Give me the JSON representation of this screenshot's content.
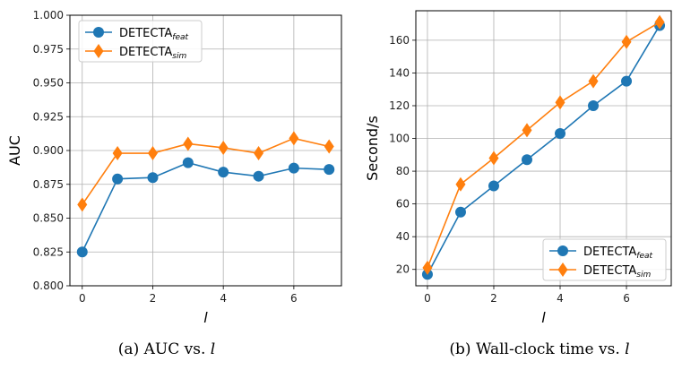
{
  "colors": {
    "feat": "#1f77b4",
    "sim": "#ff7f0e",
    "grid": "#b0b0b0"
  },
  "chart_data": [
    {
      "type": "line",
      "xlabel": "l",
      "ylabel": "AUC",
      "x": [
        0,
        1,
        2,
        3,
        4,
        5,
        6,
        7
      ],
      "xticks": [
        0,
        2,
        4,
        6
      ],
      "yticks": [
        "0.800",
        "0.825",
        "0.850",
        "0.875",
        "0.900",
        "0.925",
        "0.950",
        "0.975",
        "1.000"
      ],
      "ylim": [
        0.8,
        1.0
      ],
      "xlim": [
        -0.35,
        7.35
      ],
      "grid": true,
      "legend_position": "top-left",
      "series": [
        {
          "name": "DETECTA",
          "sub": "feat",
          "marker": "circle",
          "color": "#1f77b4",
          "values": [
            0.825,
            0.879,
            0.88,
            0.891,
            0.884,
            0.881,
            0.887,
            0.886
          ]
        },
        {
          "name": "DETECTA",
          "sub": "sim",
          "marker": "diamond",
          "color": "#ff7f0e",
          "values": [
            0.86,
            0.898,
            0.898,
            0.905,
            0.902,
            0.898,
            0.909,
            0.903
          ]
        }
      ],
      "caption": {
        "prefix": "(a)  AUC vs. ",
        "var": "l"
      }
    },
    {
      "type": "line",
      "xlabel": "l",
      "ylabel": "Second/s",
      "x": [
        0,
        1,
        2,
        3,
        4,
        5,
        6,
        7
      ],
      "xticks": [
        0,
        2,
        4,
        6
      ],
      "yticks": [
        "20",
        "40",
        "60",
        "80",
        "100",
        "120",
        "140",
        "160"
      ],
      "ylim": [
        10,
        178
      ],
      "xlim": [
        -0.35,
        7.35
      ],
      "grid": true,
      "legend_position": "bottom-right",
      "series": [
        {
          "name": "DETECTA",
          "sub": "feat",
          "marker": "circle",
          "color": "#1f77b4",
          "values": [
            17,
            55,
            71,
            87,
            103,
            120,
            135,
            169
          ]
        },
        {
          "name": "DETECTA",
          "sub": "sim",
          "marker": "diamond",
          "color": "#ff7f0e",
          "values": [
            21,
            72,
            88,
            105,
            122,
            135,
            159,
            171
          ]
        }
      ],
      "caption": {
        "prefix": "(b)  Wall-clock time vs. ",
        "var": "l"
      }
    }
  ]
}
